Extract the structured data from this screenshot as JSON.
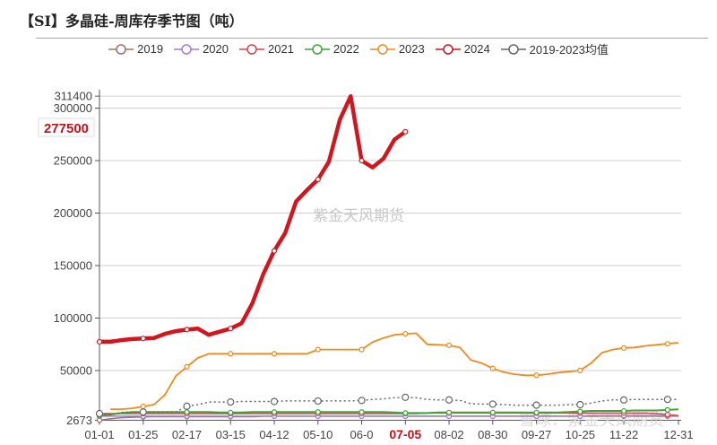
{
  "title": "【SI】多晶硅-周库存季节图（吨）",
  "watermark": "紫金天风期货",
  "watermark_corner": "雪球：紫金天风期货",
  "chart_data": {
    "type": "line",
    "title": "【SI】多晶硅-周库存季节图（吨）",
    "x_ticks": [
      "01-01",
      "01-25",
      "02-17",
      "03-15",
      "04-12",
      "05-10",
      "06-0",
      "07-05",
      "08-02",
      "08-30",
      "09-27",
      "10-25",
      "11-22",
      "12-31"
    ],
    "highlight_x_tick": "07-05",
    "y_ticks": [
      2673,
      50000,
      100000,
      150000,
      200000,
      250000,
      300000,
      311400
    ],
    "ylim": [
      2673,
      311400
    ],
    "highlight_value": "277500",
    "grid": true,
    "legend_position": "top",
    "series": [
      {
        "name": "2019",
        "color": "#a0706a",
        "width": 1.5,
        "values": [
          2673,
          4000,
          5000,
          5500,
          5800,
          6000,
          6000,
          6000,
          6000,
          6000,
          6000,
          6000,
          6000,
          6000,
          6000,
          6500,
          6500,
          6500,
          6500,
          6500,
          6500,
          6500,
          6500,
          6500,
          6500,
          6500,
          6500,
          6500,
          6500,
          6500,
          6500,
          6500,
          6500,
          6500,
          6500,
          6500,
          6500,
          6500,
          6500,
          6500,
          6500,
          6500,
          6500,
          6500,
          6500,
          6500,
          6500,
          6500,
          6500,
          6500,
          6500,
          6500,
          6500,
          6500
        ]
      },
      {
        "name": "2020",
        "color": "#9b7fd0",
        "width": 1.5,
        "values": [
          6500,
          6500,
          6500,
          6500,
          6500,
          6500,
          6500,
          6500,
          6500,
          6500,
          6500,
          6500,
          6500,
          6500,
          6500,
          6500,
          6500,
          6500,
          6500,
          6500,
          6500,
          6500,
          6500,
          6500,
          6500,
          6500,
          6500,
          6500,
          6500,
          6500,
          6500,
          6500,
          6500,
          6500,
          6500,
          6500,
          6500,
          6500,
          6500,
          6500,
          6500,
          6500,
          6500,
          6500,
          6500,
          7000,
          7000,
          7000,
          7000,
          7000,
          7000,
          7000,
          7000,
          6500
        ]
      },
      {
        "name": "2021",
        "color": "#d9424a",
        "width": 1.5,
        "values": [
          9000,
          9000,
          9000,
          9000,
          9000,
          9000,
          9000,
          9000,
          9000,
          9000,
          9000,
          9000,
          9000,
          9000,
          9000,
          9000,
          9000,
          9000,
          9000,
          9000,
          9000,
          9000,
          9000,
          9000,
          9000,
          9000,
          9000,
          9000,
          9000,
          9000,
          9500,
          9500,
          9500,
          9500,
          9500,
          9500,
          9500,
          9500,
          9500,
          9500,
          9500,
          9500,
          9500,
          9500,
          9500,
          9500,
          9500,
          9500,
          9500,
          9500,
          9500,
          9000,
          8000,
          7000
        ]
      },
      {
        "name": "2022",
        "color": "#3aa53a",
        "width": 2,
        "values": [
          7000,
          8000,
          9500,
          10500,
          10500,
          10500,
          10500,
          10500,
          10500,
          10500,
          10500,
          10000,
          10000,
          10000,
          10500,
          10500,
          10500,
          10500,
          10500,
          10500,
          10500,
          10500,
          10500,
          10500,
          10500,
          10500,
          10500,
          10000,
          9500,
          9500,
          9500,
          10000,
          10000,
          10000,
          10000,
          10000,
          10000,
          10000,
          10000,
          10000,
          10000,
          10000,
          10000,
          10500,
          11000,
          11500,
          11500,
          11500,
          11500,
          12000,
          12000,
          12000,
          12500,
          13000
        ]
      },
      {
        "name": "2023",
        "color": "#f0891e",
        "width": 1.8,
        "values": [
          null,
          13200,
          13200,
          14000,
          15800,
          17500,
          27000,
          45000,
          53500,
          62000,
          66000,
          66000,
          66000,
          66000,
          66000,
          66000,
          66000,
          66000,
          66000,
          66000,
          70000,
          70000,
          70000,
          70000,
          70000,
          77000,
          81000,
          84000,
          85000,
          85500,
          75000,
          74500,
          74000,
          72000,
          60000,
          57000,
          52000,
          48500,
          46500,
          45500,
          45500,
          46500,
          48000,
          49000,
          50000,
          57000,
          67000,
          70000,
          71500,
          72000,
          73500,
          74500,
          75500,
          76500
        ]
      },
      {
        "name": "2024",
        "color": "#d0161e",
        "width": 4.5,
        "values": [
          77400,
          77400,
          79000,
          80000,
          80500,
          81000,
          85000,
          87500,
          89000,
          90000,
          84000,
          87000,
          90000,
          95000,
          114000,
          142000,
          164000,
          181000,
          211000,
          222000,
          232000,
          249000,
          289000,
          311400,
          250000,
          243500,
          252000,
          270000,
          277500
        ]
      },
      {
        "name": "2019-2023均值",
        "color": "#666666",
        "width": 1.5,
        "dash": "2,3",
        "values": [
          9000,
          8000,
          10000,
          10500,
          10500,
          10500,
          10500,
          10500,
          16000,
          17500,
          20000,
          20000,
          20000,
          20500,
          20500,
          20500,
          20500,
          21000,
          21000,
          21000,
          21000,
          21000,
          21000,
          21000,
          21500,
          22500,
          23000,
          24000,
          24500,
          24000,
          22500,
          22000,
          22000,
          21500,
          18500,
          18000,
          18000,
          17500,
          17000,
          17000,
          17000,
          17000,
          17000,
          17500,
          17500,
          19000,
          21000,
          22000,
          22000,
          22500,
          22500,
          22500,
          22500,
          22500
        ]
      }
    ]
  }
}
